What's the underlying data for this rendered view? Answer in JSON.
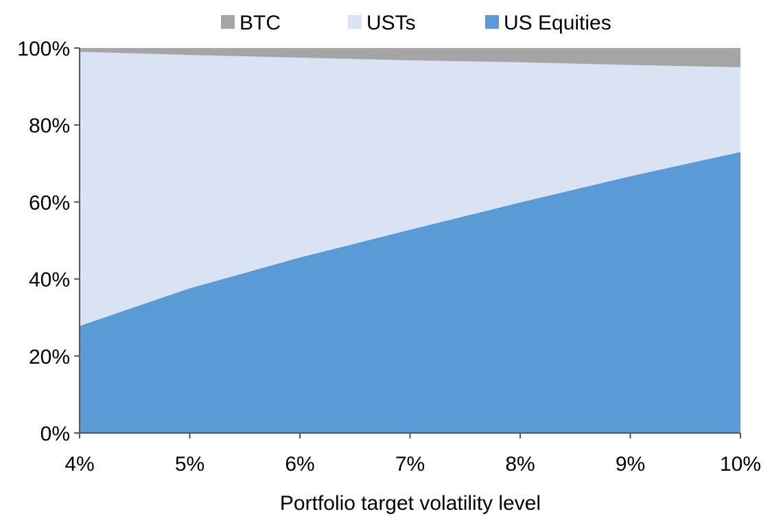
{
  "chart_data": {
    "type": "area",
    "stacked": true,
    "percent_stacked": true,
    "title": "",
    "xlabel": "Portfolio target volatility level",
    "ylabel": "",
    "categories": [
      "4%",
      "5%",
      "6%",
      "7%",
      "8%",
      "9%",
      "10%"
    ],
    "x": [
      4,
      5,
      6,
      7,
      8,
      9,
      10
    ],
    "ylim": [
      0,
      100
    ],
    "yticks": [
      "0%",
      "20%",
      "40%",
      "60%",
      "80%",
      "100%"
    ],
    "ytick_values": [
      0,
      20,
      40,
      60,
      80,
      100
    ],
    "grid": false,
    "legend": {
      "position": "top"
    },
    "series": [
      {
        "name": "US Equities",
        "color": "#5b9bd5",
        "values": [
          27.8,
          37.6,
          45.6,
          52.8,
          59.9,
          66.7,
          73.0
        ]
      },
      {
        "name": "USTs",
        "color": "#dae3f3",
        "values": [
          71.2,
          60.6,
          51.9,
          44.0,
          36.4,
          28.9,
          22.0
        ]
      },
      {
        "name": "BTC",
        "color": "#a5a5a5",
        "values": [
          1.0,
          1.8,
          2.5,
          3.2,
          3.7,
          4.4,
          5.0
        ]
      }
    ],
    "legend_order": [
      "BTC",
      "USTs",
      "US Equities"
    ]
  }
}
